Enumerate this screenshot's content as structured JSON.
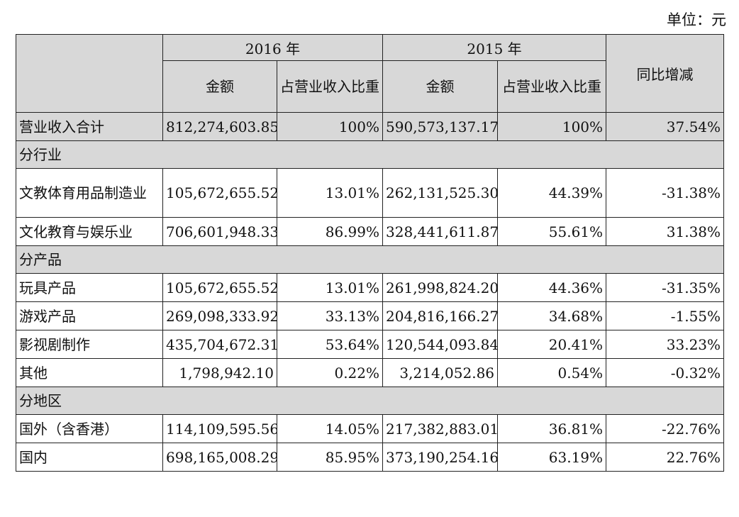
{
  "unit_label": "单位：元",
  "header": {
    "year_2016": "2016 年",
    "year_2015": "2015 年",
    "amount": "金额",
    "share": "占营业收入比重",
    "yoy": "同比增减"
  },
  "total": {
    "label": "营业收入合计",
    "amt2016": "812,274,603.85",
    "pct2016": "100%",
    "amt2015": "590,573,137.17",
    "pct2015": "100%",
    "yoy": "37.54%"
  },
  "sections": {
    "industry": {
      "title": "分行业",
      "rows": [
        {
          "label": "文教体育用品制造业",
          "amt2016": "105,672,655.52",
          "pct2016": "13.01%",
          "amt2015": "262,131,525.30",
          "pct2015": "44.39%",
          "yoy": "-31.38%"
        },
        {
          "label": "文化教育与娱乐业",
          "amt2016": "706,601,948.33",
          "pct2016": "86.99%",
          "amt2015": "328,441,611.87",
          "pct2015": "55.61%",
          "yoy": "31.38%"
        }
      ]
    },
    "product": {
      "title": "分产品",
      "rows": [
        {
          "label": "玩具产品",
          "amt2016": "105,672,655.52",
          "pct2016": "13.01%",
          "amt2015": "261,998,824.20",
          "pct2015": "44.36%",
          "yoy": "-31.35%"
        },
        {
          "label": "游戏产品",
          "amt2016": "269,098,333.92",
          "pct2016": "33.13%",
          "amt2015": "204,816,166.27",
          "pct2015": "34.68%",
          "yoy": "-1.55%"
        },
        {
          "label": "影视剧制作",
          "amt2016": "435,704,672.31",
          "pct2016": "53.64%",
          "amt2015": "120,544,093.84",
          "pct2015": "20.41%",
          "yoy": "33.23%"
        },
        {
          "label": "其他",
          "amt2016": "1,798,942.10",
          "pct2016": "0.22%",
          "amt2015": "3,214,052.86",
          "pct2015": "0.54%",
          "yoy": "-0.32%"
        }
      ]
    },
    "region": {
      "title": "分地区",
      "rows": [
        {
          "label": "国外（含香港）",
          "amt2016": "114,109,595.56",
          "pct2016": "14.05%",
          "amt2015": "217,382,883.01",
          "pct2015": "36.81%",
          "yoy": "-22.76%"
        },
        {
          "label": "国内",
          "amt2016": "698,165,008.29",
          "pct2016": "85.95%",
          "amt2015": "373,190,254.16",
          "pct2015": "63.19%",
          "yoy": "22.76%"
        }
      ]
    }
  }
}
